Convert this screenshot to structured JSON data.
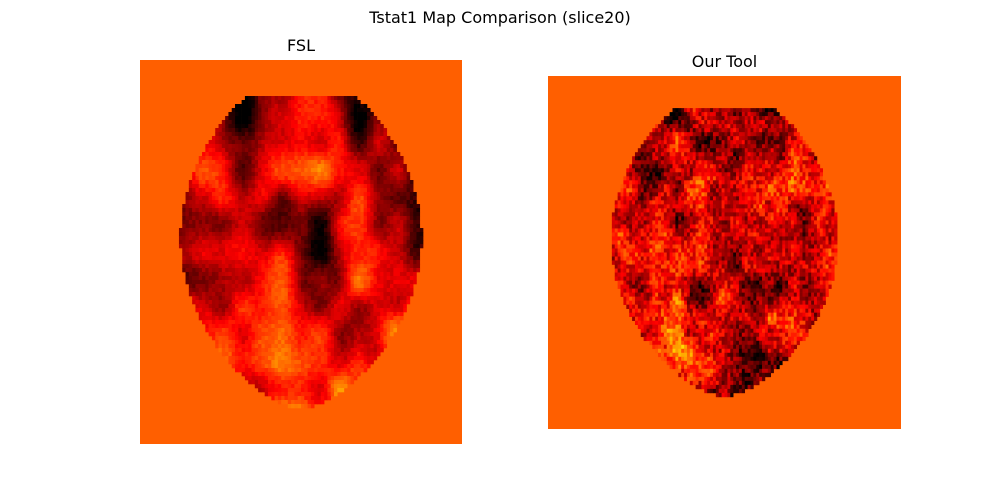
{
  "figure": {
    "title": "Tstat1 Map Comparison (slice20)"
  },
  "chart_data": [
    {
      "type": "heatmap",
      "title": "FSL",
      "colormap": "hot",
      "background_color": "#ff5f00",
      "grid": false,
      "axes_visible": false
    },
    {
      "type": "heatmap",
      "title": "Our Tool",
      "colormap": "hot",
      "background_color": "#ff5f00",
      "grid": false,
      "axes_visible": false
    }
  ]
}
